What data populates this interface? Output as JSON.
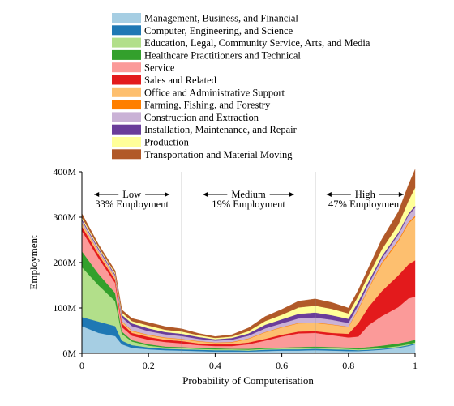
{
  "chart_data": {
    "type": "area",
    "stacked": true,
    "title": "",
    "xlabel": "Probability of Computerisation",
    "ylabel": "Employment",
    "xlim": [
      0,
      1
    ],
    "ylim": [
      0,
      400
    ],
    "x_ticks": [
      "0",
      "0.2",
      "0.4",
      "0.6",
      "0.8",
      "1"
    ],
    "y_ticks": [
      "0M",
      "100M",
      "200M",
      "300M",
      "400M"
    ],
    "grid": false,
    "legend_position": "top-center",
    "regions": [
      {
        "label": "Low",
        "share": "33% Employment",
        "from": 0,
        "to": 0.3
      },
      {
        "label": "Medium",
        "share": "19% Employment",
        "from": 0.3,
        "to": 0.7
      },
      {
        "label": "High",
        "share": "47% Employment",
        "from": 0.7,
        "to": 1
      }
    ],
    "x": [
      0,
      0.05,
      0.1,
      0.12,
      0.15,
      0.2,
      0.25,
      0.3,
      0.35,
      0.4,
      0.45,
      0.5,
      0.55,
      0.6,
      0.65,
      0.7,
      0.75,
      0.8,
      0.83,
      0.86,
      0.9,
      0.95,
      0.98,
      1
    ],
    "series": [
      {
        "name": "Management, Business, and Financial",
        "color": "#a6cee3",
        "values": [
          60,
          45,
          38,
          20,
          12,
          9,
          7,
          6,
          5,
          4,
          4,
          4,
          5,
          6,
          6,
          7,
          6,
          5,
          5,
          6,
          8,
          12,
          16,
          20
        ]
      },
      {
        "name": "Computer, Engineering, and Science",
        "color": "#1f78b4",
        "values": [
          20,
          25,
          22,
          8,
          6,
          4,
          3,
          3,
          3,
          3,
          3,
          2,
          3,
          3,
          3,
          3,
          3,
          3,
          2,
          2,
          2,
          2,
          2,
          2
        ]
      },
      {
        "name": "Education, Legal, Community Service, Arts, and Media",
        "color": "#b2df8a",
        "values": [
          110,
          80,
          55,
          15,
          8,
          4,
          3,
          3,
          2,
          2,
          2,
          2,
          2,
          2,
          3,
          3,
          3,
          2,
          2,
          2,
          2,
          2,
          2,
          2
        ]
      },
      {
        "name": "Healthcare Practitioners and Technical",
        "color": "#33a02c",
        "values": [
          35,
          25,
          18,
          5,
          3,
          3,
          2,
          2,
          2,
          2,
          1,
          2,
          2,
          2,
          2,
          2,
          2,
          3,
          3,
          4,
          5,
          6,
          6,
          6
        ]
      },
      {
        "name": "Service",
        "color": "#fb9a99",
        "values": [
          45,
          35,
          22,
          10,
          10,
          10,
          10,
          8,
          6,
          5,
          6,
          10,
          16,
          24,
          30,
          30,
          26,
          22,
          25,
          48,
          65,
          80,
          95,
          95
        ]
      },
      {
        "name": "Sales and Related",
        "color": "#e31a1c",
        "values": [
          10,
          8,
          7,
          8,
          6,
          6,
          5,
          5,
          4,
          4,
          4,
          4,
          4,
          4,
          4,
          4,
          5,
          8,
          30,
          40,
          55,
          70,
          75,
          80
        ]
      },
      {
        "name": "Office and Administrative Support",
        "color": "#fdbf6f",
        "values": [
          6,
          5,
          4,
          4,
          4,
          4,
          4,
          4,
          4,
          3,
          4,
          8,
          14,
          16,
          18,
          18,
          18,
          15,
          30,
          40,
          60,
          75,
          90,
          95
        ]
      },
      {
        "name": "Farming, Fishing, and Forestry",
        "color": "#ff7f00",
        "values": [
          1,
          1,
          1,
          1,
          1,
          1,
          1,
          1,
          1,
          1,
          1,
          1,
          1,
          1,
          1,
          1,
          1,
          1,
          2,
          2,
          3,
          3,
          3,
          3
        ]
      },
      {
        "name": "Construction and Extraction",
        "color": "#cab2d6",
        "values": [
          6,
          5,
          4,
          8,
          10,
          8,
          7,
          6,
          5,
          4,
          5,
          6,
          8,
          8,
          10,
          11,
          10,
          8,
          8,
          8,
          9,
          12,
          15,
          18
        ]
      },
      {
        "name": "Installation, Maintenance, and Repair",
        "color": "#6a3d9a",
        "values": [
          3,
          3,
          3,
          6,
          6,
          6,
          5,
          5,
          4,
          3,
          4,
          5,
          8,
          9,
          10,
          11,
          10,
          9,
          8,
          6,
          5,
          4,
          4,
          4
        ]
      },
      {
        "name": "Production",
        "color": "#ffff99",
        "values": [
          4,
          3,
          3,
          5,
          5,
          6,
          5,
          5,
          4,
          3,
          3,
          5,
          8,
          10,
          14,
          15,
          14,
          12,
          12,
          14,
          15,
          18,
          28,
          40
        ]
      },
      {
        "name": "Transportation and Material Moving",
        "color": "#b15928",
        "values": [
          8,
          5,
          5,
          6,
          6,
          7,
          7,
          6,
          4,
          3,
          4,
          7,
          10,
          12,
          14,
          15,
          14,
          12,
          13,
          16,
          22,
          28,
          35,
          40
        ]
      }
    ]
  }
}
